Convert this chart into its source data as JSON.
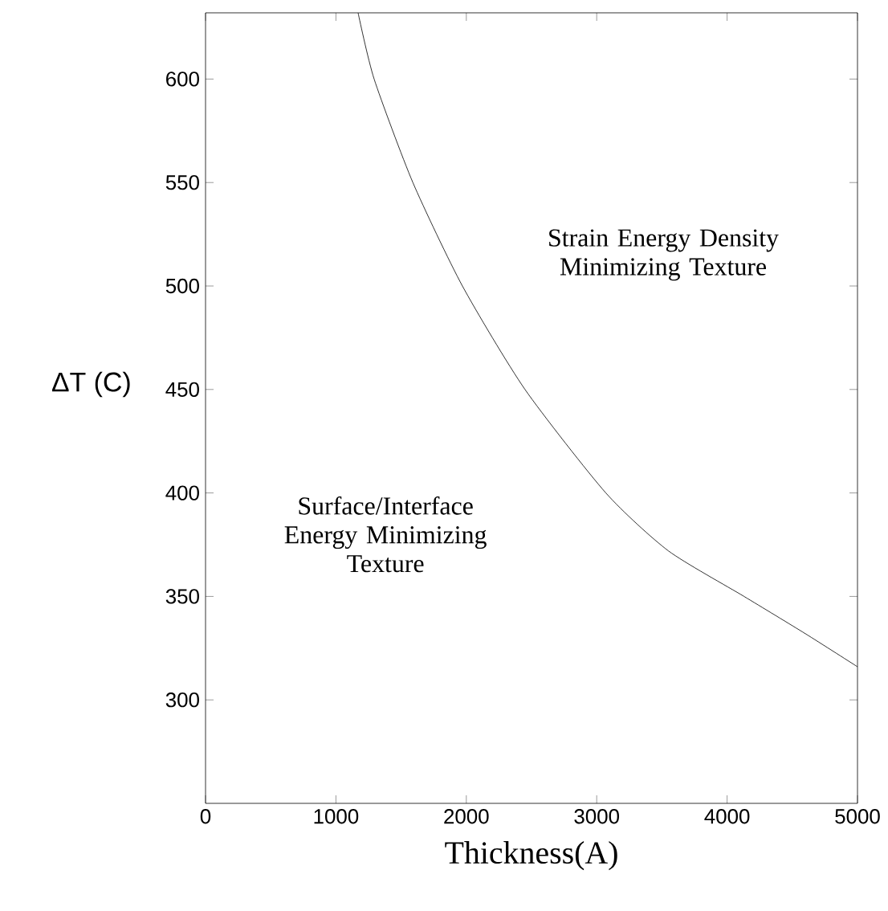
{
  "chart_data": {
    "type": "line",
    "xlabel": "Thickness(A)",
    "ylabel": "ΔT (C)",
    "x": [
      1170,
      1293,
      1590,
      1970,
      2450,
      3070,
      3550,
      4130,
      4600,
      5000
    ],
    "series": [
      {
        "color": "#000000",
        "values": [
          632,
          600,
          550,
          500,
          450,
          400,
          372,
          350,
          332,
          316
        ]
      }
    ],
    "xlim": [
      0,
      5000
    ],
    "ylim": [
      250,
      632
    ],
    "xticks": [
      0,
      1000,
      2000,
      3000,
      4000,
      5000
    ],
    "yticks": [
      300,
      350,
      400,
      450,
      500,
      550,
      600
    ],
    "annotations": [
      "Strain Energy Density Minimizing Texture",
      "Surface/Interface Energy Minimizing Texture"
    ],
    "marker": "none",
    "line_style": "solid"
  }
}
